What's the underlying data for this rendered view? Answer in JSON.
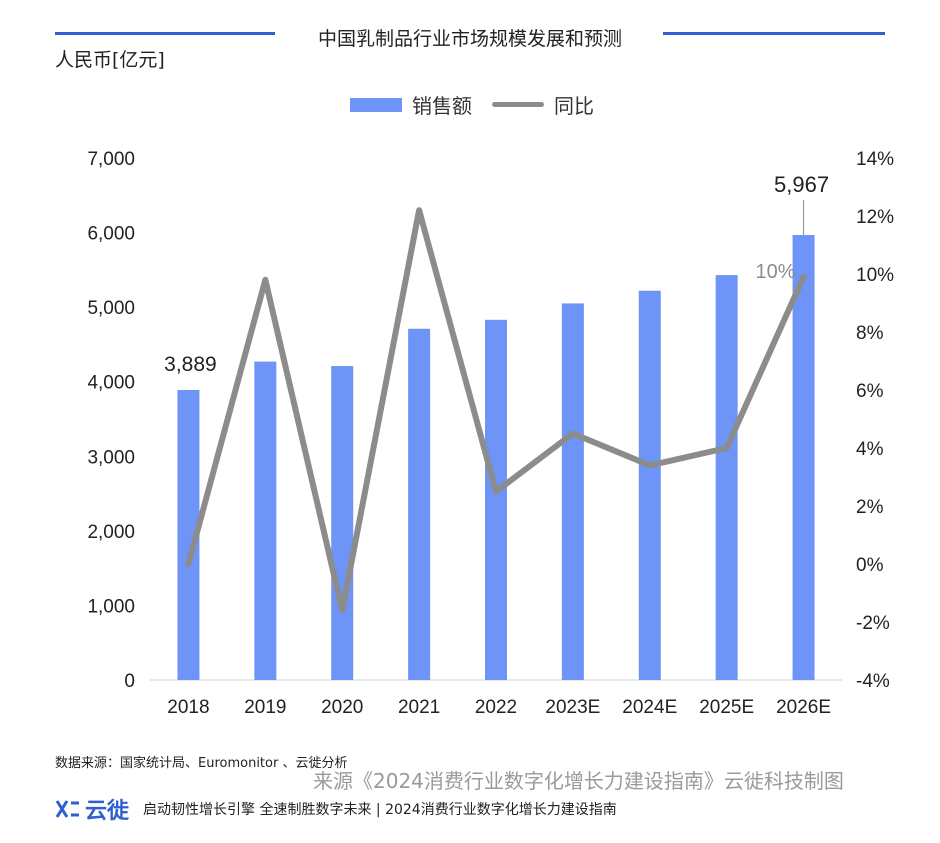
{
  "header": {
    "title": "中国乳制品行业市场规模发展和预测",
    "unit": "人民币[亿元]"
  },
  "legend": {
    "bar_label": "销售额",
    "line_label": "同比"
  },
  "colors": {
    "bar": "#6e94f7",
    "line": "#8c8c8c",
    "accent": "#2f5fd0"
  },
  "chart_data": {
    "type": "bar",
    "categories": [
      "2018",
      "2019",
      "2020",
      "2021",
      "2022",
      "2023E",
      "2024E",
      "2025E",
      "2026E"
    ],
    "series": [
      {
        "name": "销售额",
        "type": "bar",
        "axis": "left",
        "values": [
          3889,
          4270,
          4210,
          4710,
          4830,
          5050,
          5220,
          5430,
          5967
        ]
      },
      {
        "name": "同比",
        "type": "line",
        "axis": "right",
        "values": [
          0.0,
          9.8,
          -1.6,
          12.2,
          2.5,
          4.5,
          3.4,
          4.0,
          9.9
        ]
      }
    ],
    "y_left": {
      "ylim": [
        0,
        7000
      ],
      "ticks": [
        "0",
        "1,000",
        "2,000",
        "3,000",
        "4,000",
        "5,000",
        "6,000",
        "7,000"
      ]
    },
    "y_right": {
      "ylim": [
        -4,
        14
      ],
      "ticks": [
        "-4%",
        "-2%",
        "0%",
        "2%",
        "4%",
        "6%",
        "8%",
        "10%",
        "12%",
        "14%"
      ]
    },
    "annotations": [
      {
        "text": "3,889",
        "category": "2018",
        "series": "销售额"
      },
      {
        "text": "5,967",
        "category": "2026E",
        "series": "销售额"
      },
      {
        "text": "10%",
        "category": "2026E",
        "series": "同比"
      }
    ],
    "grid": false,
    "legend_position": "top"
  },
  "footer": {
    "source": "数据来源：国家统计局、Euromonitor 、云徙分析",
    "watermark": "来源《2024消费行业数字化增长力建设指南》云徙科技制图",
    "brand": "云徙",
    "slogan": "启动韧性增长引擎  全速制胜数字未来 | 2024消费行业数字化增长力建设指南"
  }
}
